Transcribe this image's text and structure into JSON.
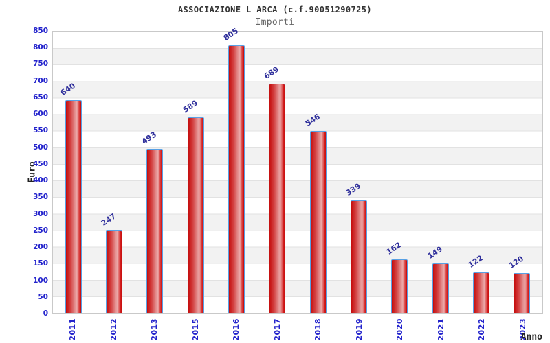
{
  "chart_data": {
    "type": "bar",
    "title": "ASSOCIAZIONE L ARCA (c.f.90051290725)",
    "subtitle": "Importi",
    "xlabel": "Anno",
    "ylabel": "Euro",
    "categories": [
      "2011",
      "2012",
      "2013",
      "2015",
      "2016",
      "2017",
      "2018",
      "2019",
      "2020",
      "2021",
      "2022",
      "2023"
    ],
    "values": [
      640,
      247,
      493,
      589,
      805,
      689,
      546,
      339,
      162,
      149,
      122,
      120
    ],
    "ylim": [
      0,
      850
    ],
    "yticks": [
      0,
      50,
      100,
      150,
      200,
      250,
      300,
      350,
      400,
      450,
      500,
      550,
      600,
      650,
      700,
      750,
      800,
      850
    ],
    "grid": "horizontal-alternating-bands",
    "legend": "none",
    "colors": {
      "bar_fill_dark": "#c50d0d",
      "bar_fill_light": "#eca9a9",
      "bar_border": "#58a0e4",
      "value_label": "#30309c",
      "tick_label": "#2323cc",
      "title": "#333333",
      "subtitle": "#666666",
      "axis_title": "#222222",
      "band": "#f2f2f2",
      "gridline": "#e2e2e2"
    }
  }
}
